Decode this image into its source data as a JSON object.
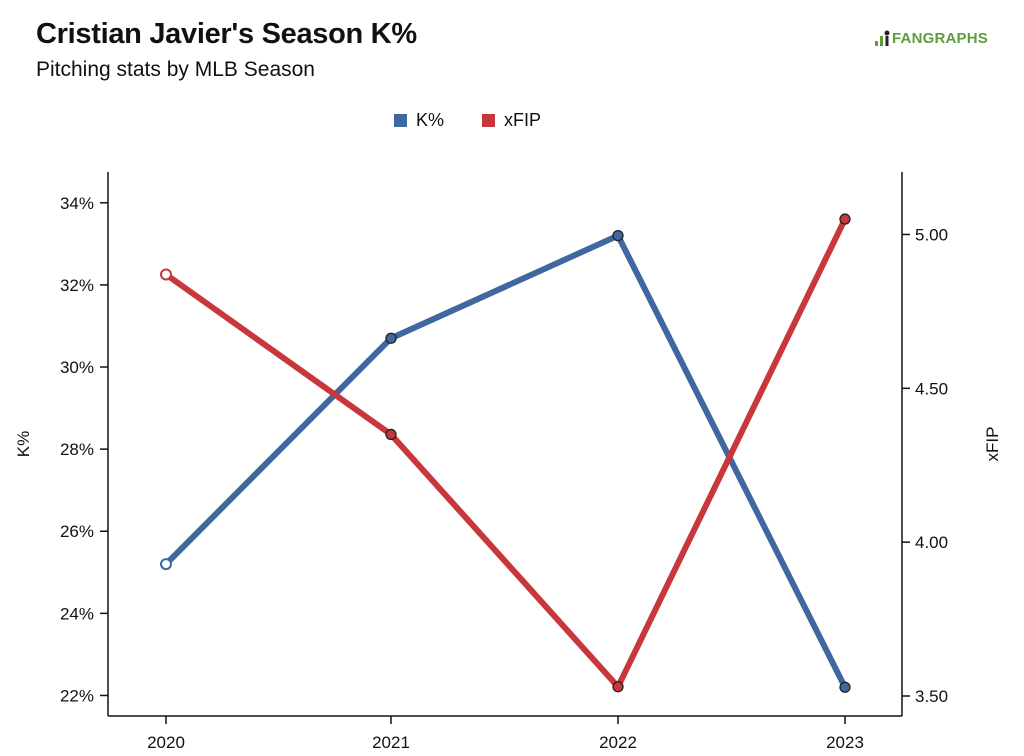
{
  "header": {
    "title": "Cristian Javier's Season K%",
    "subtitle": "Pitching stats by MLB Season",
    "logo_text": "FANGRAPHS"
  },
  "colors": {
    "k_pct": "#3f67a0",
    "xfip": "#c8373b",
    "logo": "#5c9e3c"
  },
  "chart_data": {
    "type": "line",
    "title": "Cristian Javier's Season K%",
    "subtitle": "Pitching stats by MLB Season",
    "x": [
      "2020",
      "2021",
      "2022",
      "2023"
    ],
    "legend_placement": "top-center",
    "grid": false,
    "series": [
      {
        "name": "K%",
        "axis": "left",
        "values": [
          25.2,
          30.7,
          33.2,
          22.2
        ],
        "color": "#3f67a0"
      },
      {
        "name": "xFIP",
        "axis": "right",
        "values": [
          4.87,
          4.35,
          3.53,
          5.05
        ],
        "color": "#c8373b"
      }
    ],
    "y_left": {
      "label": "K%",
      "range": [
        21.5,
        34.75
      ],
      "ticks": [
        22,
        24,
        26,
        28,
        30,
        32,
        34
      ],
      "tick_labels": [
        "22%",
        "24%",
        "26%",
        "28%",
        "30%",
        "32%",
        "34%"
      ]
    },
    "y_right": {
      "label": "xFIP",
      "range": [
        3.435,
        5.203
      ],
      "ticks": [
        3.5,
        4.0,
        4.5,
        5.0
      ],
      "tick_labels": [
        "3.50",
        "4.00",
        "4.50",
        "5.00"
      ]
    }
  }
}
